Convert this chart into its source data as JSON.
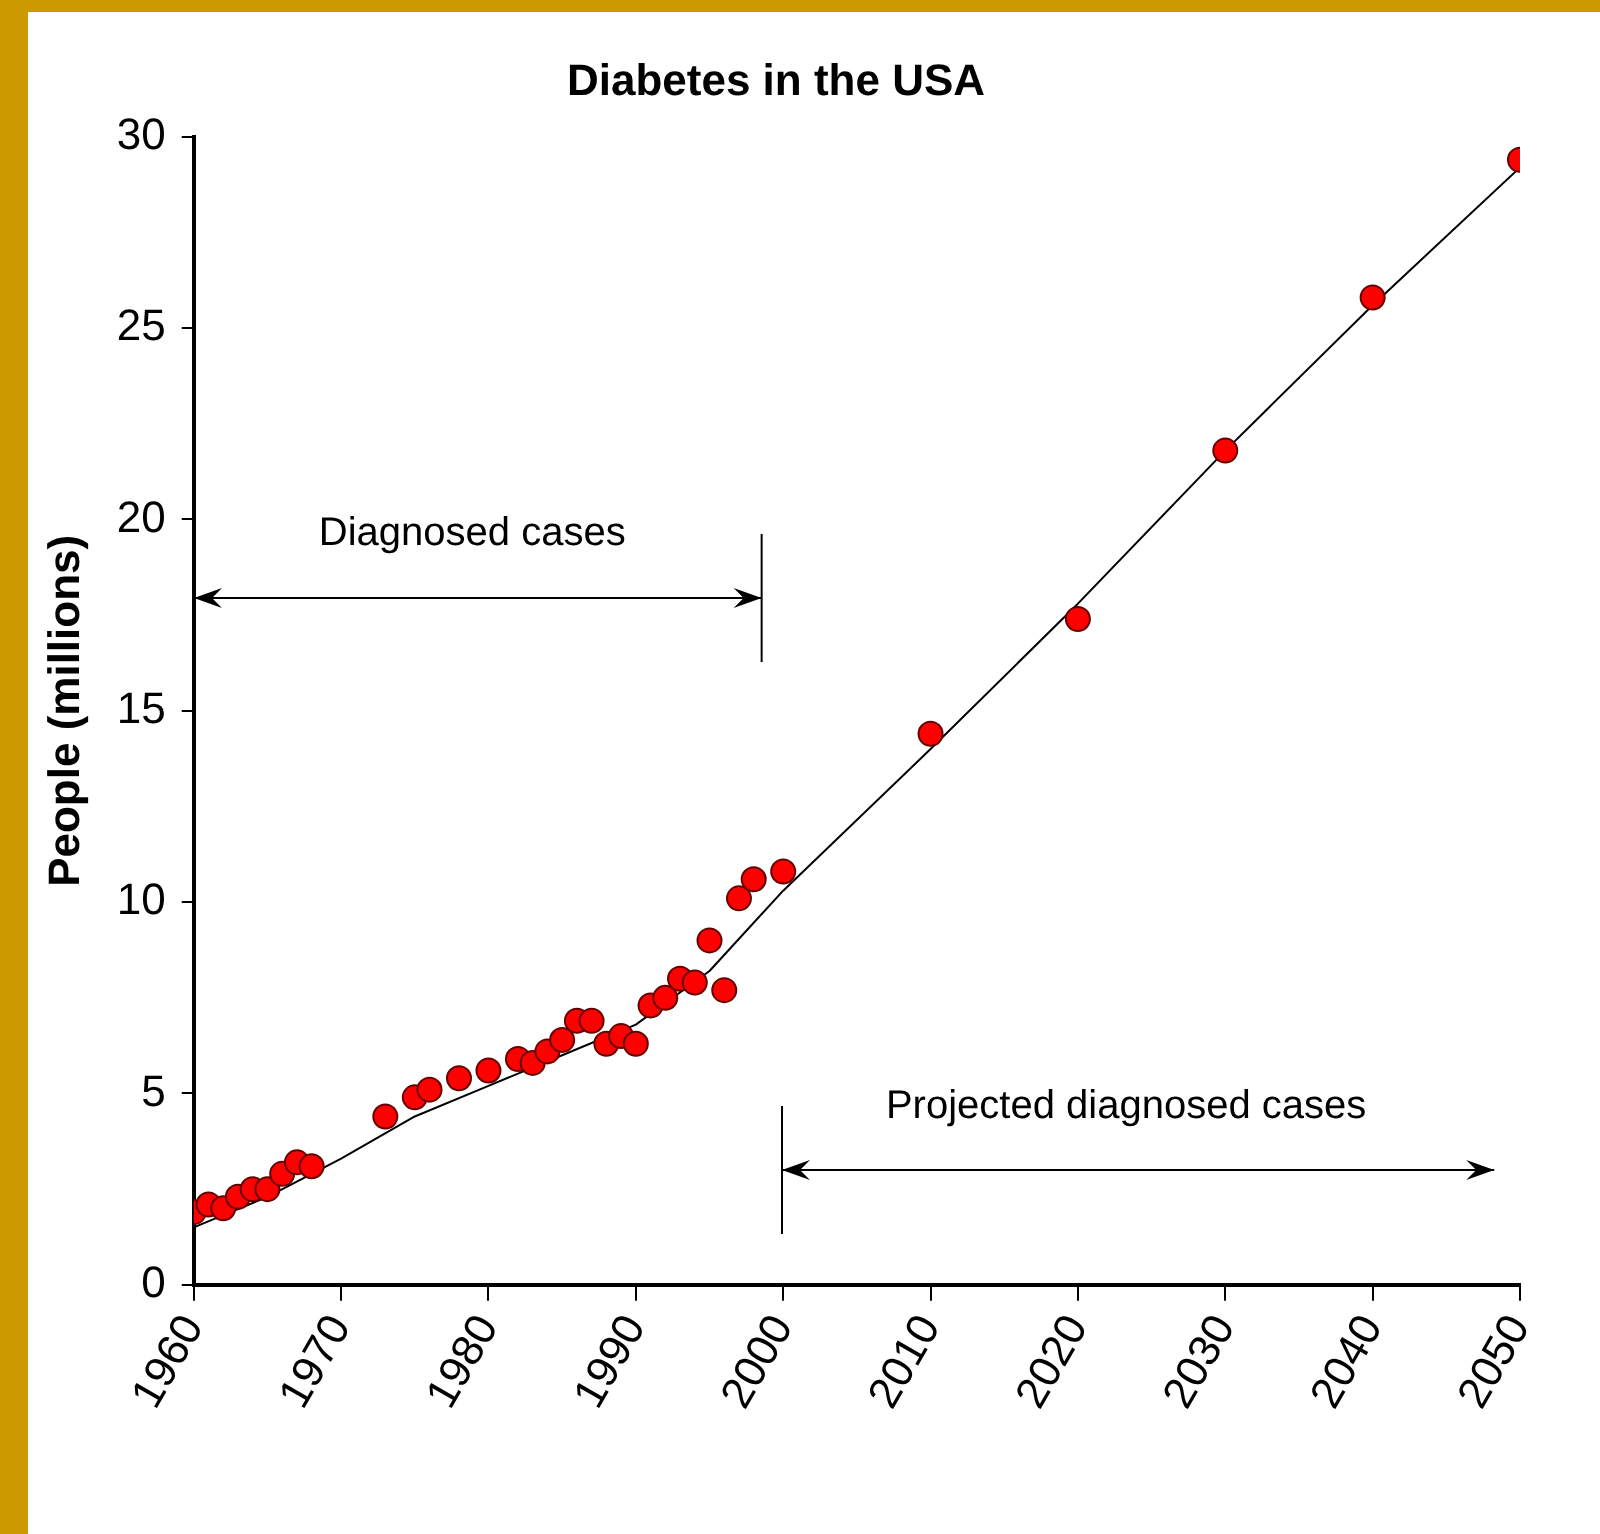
{
  "chart_data": {
    "type": "scatter",
    "title": "Diabetes in the USA",
    "ylabel": "People (millions)",
    "xlim": [
      1960,
      2050
    ],
    "xticks": [
      1960,
      1970,
      1980,
      1990,
      2000,
      2010,
      2020,
      2030,
      2040,
      2050
    ],
    "ylim": [
      0,
      30
    ],
    "yticks": [
      0,
      5,
      10,
      15,
      20,
      25,
      30
    ],
    "grid": false,
    "legend": false,
    "series": [
      {
        "marker": "circle",
        "color": "#ff0000",
        "x": [
          1960,
          1961,
          1962,
          1963,
          1964,
          1965,
          1966,
          1967,
          1968,
          1973,
          1975,
          1976,
          1978,
          1980,
          1982,
          1983,
          1984,
          1985,
          1986,
          1987,
          1988,
          1989,
          1990,
          1991,
          1992,
          1993,
          1994,
          1995,
          1996,
          1997,
          1998,
          2000,
          2010,
          2020,
          2030,
          2040,
          2050
        ],
        "values": [
          1.9,
          2.1,
          2.0,
          2.3,
          2.5,
          2.5,
          2.9,
          3.2,
          3.1,
          4.4,
          4.9,
          5.1,
          5.4,
          5.6,
          5.9,
          5.8,
          6.1,
          6.4,
          6.9,
          6.9,
          6.3,
          6.5,
          6.3,
          7.3,
          7.5,
          8.0,
          7.9,
          9.0,
          7.7,
          10.1,
          10.6,
          10.8,
          14.4,
          17.4,
          21.8,
          25.8,
          29.4
        ]
      },
      {
        "type": "line",
        "marker": "none",
        "color": "#000000",
        "line_style": "solid",
        "x": [
          1960,
          1965,
          1970,
          1975,
          1980,
          1985,
          1990,
          1995,
          2000,
          2010,
          2020,
          2030,
          2040,
          2050
        ],
        "values": [
          1.5,
          2.3,
          3.3,
          4.4,
          5.2,
          6.0,
          6.8,
          8.2,
          10.3,
          14.0,
          17.8,
          21.8,
          25.6,
          29.2
        ]
      }
    ],
    "annotations": [
      "Diagnosed cases",
      "Projected diagnosed cases"
    ]
  }
}
